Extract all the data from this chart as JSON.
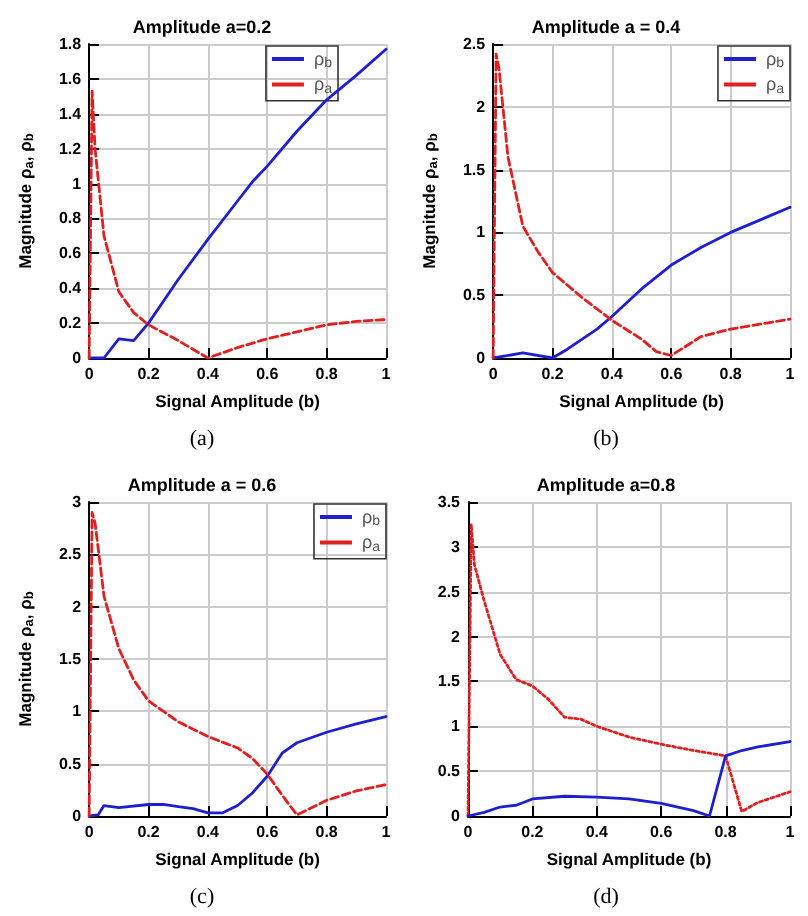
{
  "chart_data": [
    {
      "type": "line",
      "title": "Amplitude a=0.2",
      "xlabel": "Signal Amplitude (b)",
      "ylabel": "Magnitude ρ$_{a}$, ρ$_{b}$",
      "annotations": [
        "(a)"
      ],
      "xlim": [
        0,
        1
      ],
      "xticks": [
        0,
        0.2,
        0.4,
        0.6,
        0.8,
        1
      ],
      "ylim": [
        0,
        1.8
      ],
      "yticks": [
        0,
        0.2,
        0.4,
        0.6,
        0.8,
        1,
        1.2,
        1.4,
        1.6,
        1.8
      ],
      "grid": true,
      "legend": "top right",
      "series": [
        {
          "name": "ρ$_{b}$",
          "color": "#1f1fd0",
          "line_style": "solid",
          "x": [
            0,
            0.05,
            0.1,
            0.15,
            0.2,
            0.3,
            0.4,
            0.5,
            0.55,
            0.6,
            0.7,
            0.8,
            0.9,
            1
          ],
          "values": [
            0,
            0,
            0.11,
            0.1,
            0.2,
            0.45,
            0.68,
            0.9,
            1.01,
            1.1,
            1.3,
            1.48,
            1.62,
            1.77
          ]
        },
        {
          "name": "ρ$_{a}$",
          "color": "#e02020",
          "line_style": "dashed",
          "x": [
            0,
            0.01,
            0.02,
            0.05,
            0.1,
            0.15,
            0.2,
            0.3,
            0.4,
            0.5,
            0.6,
            0.7,
            0.8,
            0.9,
            1
          ],
          "values": [
            0,
            1.53,
            1.2,
            0.7,
            0.38,
            0.26,
            0.19,
            0.1,
            0,
            0.06,
            0.11,
            0.15,
            0.19,
            0.21,
            0.22
          ]
        }
      ]
    },
    {
      "type": "line",
      "title": "Amplitude a = 0.4",
      "xlabel": "Signal Amplitude (b)",
      "ylabel": "Magnitude ρ$_{a}$, ρ$_{b}$",
      "annotations": [
        "(b)"
      ],
      "xlim": [
        0,
        1
      ],
      "xticks": [
        0,
        0.2,
        0.4,
        0.6,
        0.8,
        1
      ],
      "ylim": [
        0,
        2.5
      ],
      "yticks": [
        0,
        0.5,
        1,
        1.5,
        2,
        2.5
      ],
      "grid": true,
      "legend": "top right",
      "series": [
        {
          "name": "ρ$_{b}$",
          "color": "#1f1fd0",
          "line_style": "solid",
          "x": [
            0,
            0.1,
            0.2,
            0.25,
            0.3,
            0.35,
            0.4,
            0.5,
            0.6,
            0.7,
            0.8,
            0.9,
            1
          ],
          "values": [
            0,
            0.04,
            0,
            0.07,
            0.15,
            0.23,
            0.33,
            0.55,
            0.74,
            0.88,
            1,
            1.1,
            1.2
          ]
        },
        {
          "name": "ρ$_{a}$",
          "color": "#e02020",
          "line_style": "dashed",
          "x": [
            0,
            0.01,
            0.02,
            0.05,
            0.1,
            0.15,
            0.2,
            0.3,
            0.4,
            0.5,
            0.55,
            0.6,
            0.7,
            0.8,
            0.9,
            1
          ],
          "values": [
            0,
            2.42,
            2.3,
            1.6,
            1.05,
            0.85,
            0.68,
            0.48,
            0.3,
            0.15,
            0.05,
            0.02,
            0.17,
            0.23,
            0.27,
            0.31
          ]
        }
      ]
    },
    {
      "type": "line",
      "title": "Amplitude a = 0.6",
      "xlabel": "Signal Amplitude (b)",
      "ylabel": "Magnitude ρ$_{a}$, ρ$_{b}$",
      "annotations": [
        "(c)"
      ],
      "xlim": [
        0,
        1
      ],
      "xticks": [
        0,
        0.2,
        0.4,
        0.6,
        0.8,
        1
      ],
      "ylim": [
        0,
        3
      ],
      "yticks": [
        0,
        0.5,
        1,
        1.5,
        2,
        2.5,
        3
      ],
      "grid": true,
      "legend": "top right",
      "series": [
        {
          "name": "ρ$_{b}$",
          "color": "#1f1fd0",
          "line_style": "solid",
          "x": [
            0,
            0.03,
            0.05,
            0.1,
            0.2,
            0.25,
            0.3,
            0.35,
            0.4,
            0.45,
            0.5,
            0.55,
            0.6,
            0.65,
            0.7,
            0.8,
            0.9,
            1
          ],
          "values": [
            0,
            0.01,
            0.1,
            0.08,
            0.11,
            0.11,
            0.09,
            0.07,
            0.03,
            0.03,
            0.1,
            0.22,
            0.38,
            0.6,
            0.7,
            0.8,
            0.88,
            0.95
          ]
        },
        {
          "name": "ρ$_{a}$",
          "color": "#e02020",
          "line_style": "dashed",
          "x": [
            0,
            0.01,
            0.02,
            0.05,
            0.1,
            0.15,
            0.2,
            0.3,
            0.4,
            0.5,
            0.55,
            0.6,
            0.65,
            0.7,
            0.8,
            0.9,
            1
          ],
          "values": [
            0,
            2.9,
            2.8,
            2.1,
            1.6,
            1.3,
            1.1,
            0.9,
            0.76,
            0.65,
            0.55,
            0.4,
            0.2,
            0.01,
            0.15,
            0.24,
            0.3
          ]
        }
      ]
    },
    {
      "type": "line",
      "title": "Amplitude a=0.8",
      "xlabel": "Signal Amplitude (b)",
      "annotations": [
        "(d)"
      ],
      "xlim": [
        0,
        1
      ],
      "xticks": [
        0,
        0.2,
        0.4,
        0.6,
        0.8,
        1
      ],
      "ylim": [
        0,
        3.5
      ],
      "yticks": [
        0,
        0.5,
        1,
        1.5,
        2,
        2.5,
        3,
        3.5
      ],
      "grid": true,
      "series": [
        {
          "color": "#e02020",
          "line_style": "dotted",
          "x": [
            0,
            0.01,
            0.02,
            0.05,
            0.1,
            0.15,
            0.2,
            0.25,
            0.3,
            0.35,
            0.4,
            0.5,
            0.6,
            0.7,
            0.8,
            0.85,
            0.9,
            1
          ],
          "values": [
            0,
            3.25,
            2.8,
            2.4,
            1.8,
            1.52,
            1.45,
            1.3,
            1.1,
            1.08,
            1,
            0.88,
            0.8,
            0.73,
            0.67,
            0.05,
            0.15,
            0.27
          ]
        },
        {
          "color": "#1f1fd0",
          "line_style": "solid",
          "x": [
            0,
            0.05,
            0.1,
            0.15,
            0.2,
            0.3,
            0.4,
            0.5,
            0.6,
            0.7,
            0.75,
            0.8,
            0.85,
            0.9,
            1
          ],
          "values": [
            0,
            0.04,
            0.1,
            0.12,
            0.19,
            0.22,
            0.21,
            0.19,
            0.14,
            0.06,
            0,
            0.67,
            0.73,
            0.77,
            0.83
          ]
        }
      ]
    }
  ]
}
